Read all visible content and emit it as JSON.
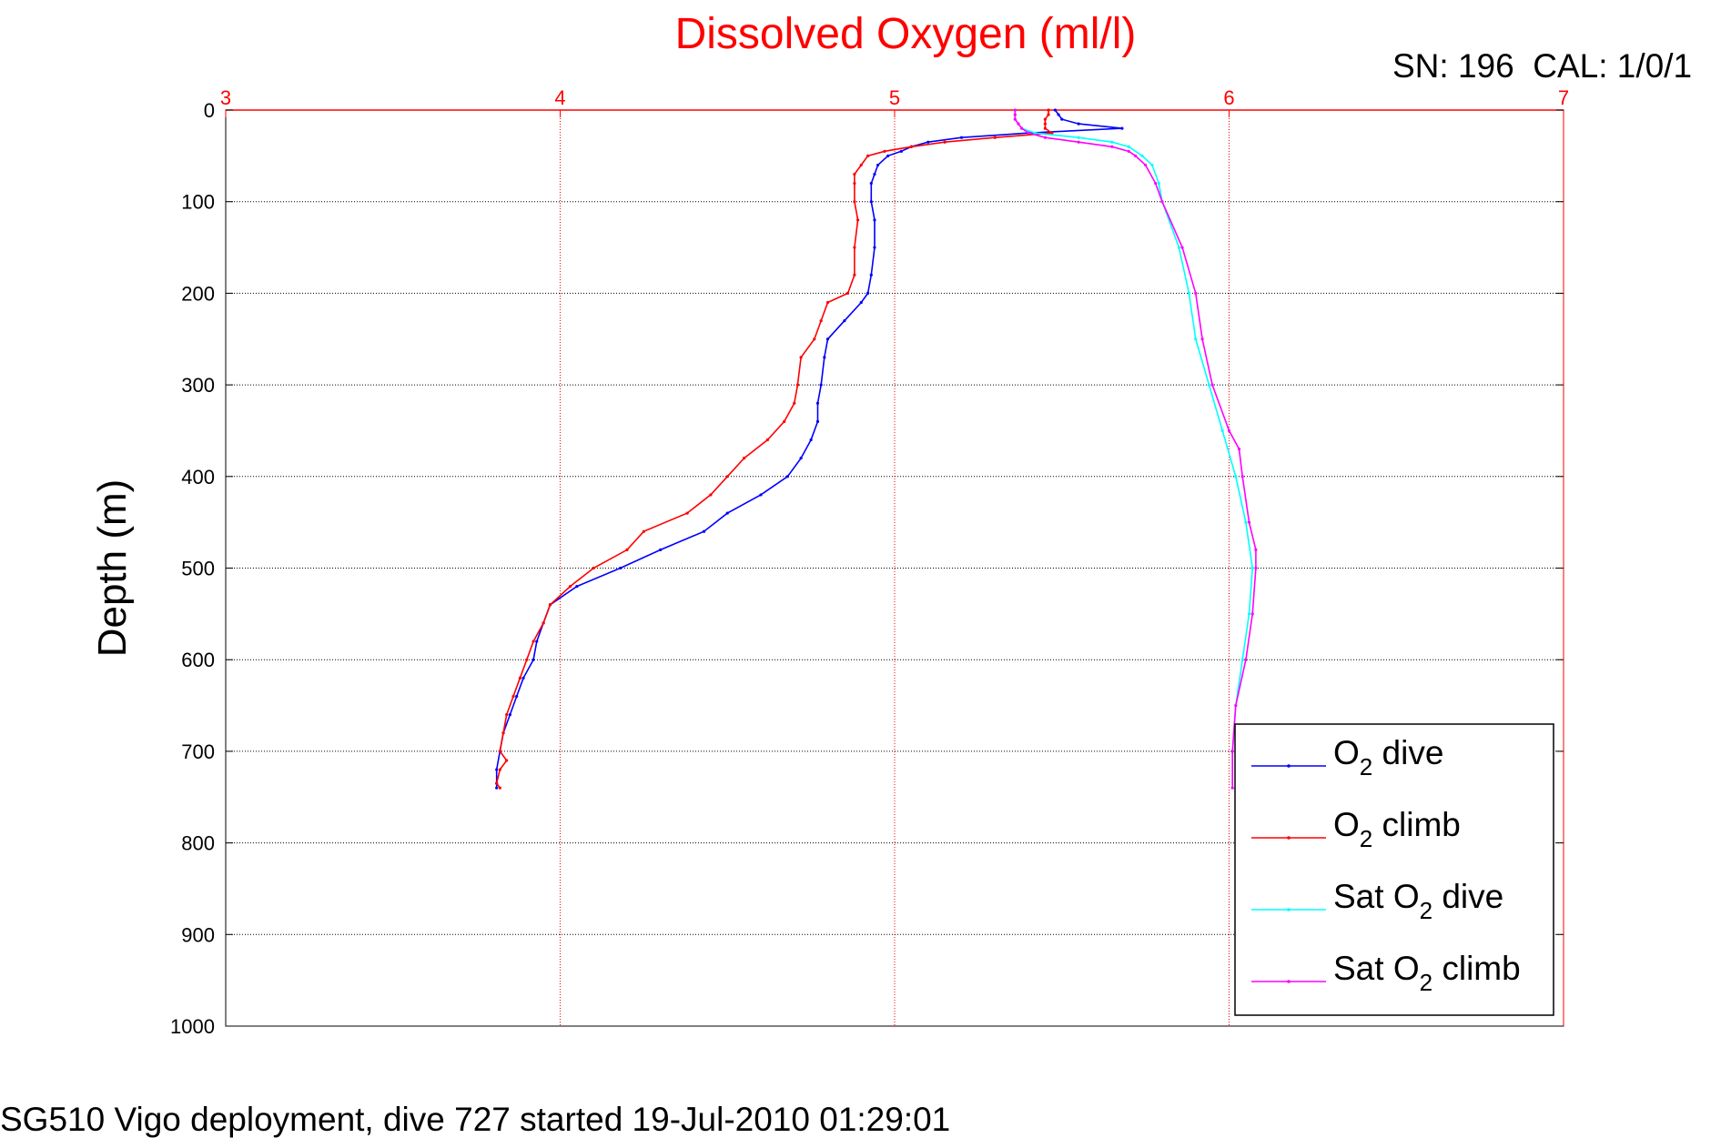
{
  "title": "Dissolved Oxygen (ml/l)",
  "sn_label": "SN: 196  CAL: 1/0/1",
  "footer": "SG510 Vigo deployment, dive 727 started 19-Jul-2010 01:29:01",
  "chart_data": {
    "type": "line",
    "xlabel": "",
    "ylabel": "Depth (m)",
    "xlim": [
      3,
      7
    ],
    "ylim": [
      0,
      1000
    ],
    "y_inverted": true,
    "x_axis_position": "top",
    "x_ticks": [
      "3",
      "4",
      "5",
      "6",
      "7"
    ],
    "y_ticks": [
      "0",
      "100",
      "200",
      "300",
      "400",
      "500",
      "600",
      "700",
      "800",
      "900",
      "1000"
    ],
    "grid": true,
    "legend_position": "bottom-right",
    "colors": {
      "x_axis": "#ff0000",
      "y_axis": "#000000",
      "title": "#ff0000"
    },
    "series": [
      {
        "name": "O2 dive",
        "legend_main": "O",
        "legend_sub": "2",
        "legend_rest": " dive",
        "color": "#0000ff",
        "depth": [
          0,
          5,
          10,
          15,
          20,
          25,
          30,
          35,
          40,
          45,
          50,
          60,
          70,
          80,
          100,
          120,
          150,
          180,
          200,
          210,
          230,
          250,
          270,
          300,
          320,
          340,
          360,
          380,
          400,
          420,
          440,
          460,
          480,
          500,
          520,
          540,
          560,
          580,
          600,
          620,
          640,
          660,
          680,
          700,
          720,
          735,
          740
        ],
        "values": [
          5.48,
          5.49,
          5.5,
          5.55,
          5.68,
          5.4,
          5.2,
          5.1,
          5.05,
          5.02,
          4.98,
          4.95,
          4.94,
          4.93,
          4.93,
          4.94,
          4.94,
          4.93,
          4.92,
          4.9,
          4.85,
          4.8,
          4.79,
          4.78,
          4.77,
          4.77,
          4.75,
          4.72,
          4.68,
          4.6,
          4.5,
          4.43,
          4.3,
          4.18,
          4.05,
          3.97,
          3.95,
          3.93,
          3.92,
          3.89,
          3.87,
          3.85,
          3.83,
          3.82,
          3.81,
          3.81,
          3.81
        ]
      },
      {
        "name": "O2 climb",
        "legend_main": "O",
        "legend_sub": "2",
        "legend_rest": " climb",
        "color": "#ff0000",
        "depth": [
          0,
          5,
          10,
          15,
          20,
          25,
          30,
          35,
          40,
          45,
          50,
          60,
          70,
          80,
          100,
          120,
          150,
          180,
          200,
          210,
          230,
          250,
          270,
          300,
          320,
          340,
          360,
          380,
          400,
          420,
          440,
          460,
          480,
          500,
          520,
          540,
          560,
          580,
          600,
          620,
          640,
          660,
          680,
          700,
          710,
          720,
          735,
          740
        ],
        "values": [
          5.46,
          5.46,
          5.45,
          5.45,
          5.45,
          5.47,
          5.3,
          5.15,
          5.05,
          4.97,
          4.92,
          4.9,
          4.88,
          4.88,
          4.88,
          4.89,
          4.88,
          4.88,
          4.86,
          4.8,
          4.78,
          4.76,
          4.72,
          4.71,
          4.7,
          4.67,
          4.62,
          4.55,
          4.5,
          4.45,
          4.38,
          4.25,
          4.2,
          4.1,
          4.03,
          3.97,
          3.95,
          3.92,
          3.9,
          3.88,
          3.86,
          3.84,
          3.83,
          3.82,
          3.84,
          3.82,
          3.81,
          3.82
        ]
      },
      {
        "name": "Sat O2 dive",
        "legend_main": "Sat O",
        "legend_sub": "2",
        "legend_rest": " dive",
        "color": "#00ffff",
        "depth": [
          0,
          5,
          10,
          15,
          20,
          25,
          30,
          35,
          40,
          50,
          60,
          80,
          100,
          150,
          200,
          250,
          300,
          350,
          400,
          450,
          500,
          550,
          600,
          650,
          700,
          740
        ],
        "values": [
          5.36,
          5.36,
          5.36,
          5.37,
          5.38,
          5.42,
          5.55,
          5.65,
          5.7,
          5.74,
          5.77,
          5.79,
          5.8,
          5.85,
          5.88,
          5.9,
          5.94,
          5.98,
          6.02,
          6.05,
          6.07,
          6.06,
          6.04,
          6.02,
          6.01,
          6.01
        ]
      },
      {
        "name": "Sat O2 climb",
        "legend_main": "Sat O",
        "legend_sub": "2",
        "legend_rest": " climb",
        "color": "#ff00ff",
        "depth": [
          0,
          5,
          10,
          15,
          20,
          25,
          30,
          35,
          40,
          45,
          50,
          60,
          80,
          100,
          150,
          200,
          250,
          300,
          350,
          370,
          400,
          450,
          480,
          500,
          550,
          600,
          650,
          700,
          740
        ],
        "values": [
          5.36,
          5.36,
          5.36,
          5.37,
          5.38,
          5.4,
          5.45,
          5.55,
          5.65,
          5.7,
          5.72,
          5.75,
          5.78,
          5.8,
          5.86,
          5.9,
          5.92,
          5.95,
          6.0,
          6.03,
          6.04,
          6.06,
          6.08,
          6.08,
          6.07,
          6.05,
          6.02,
          6.01,
          6.01
        ]
      }
    ]
  }
}
